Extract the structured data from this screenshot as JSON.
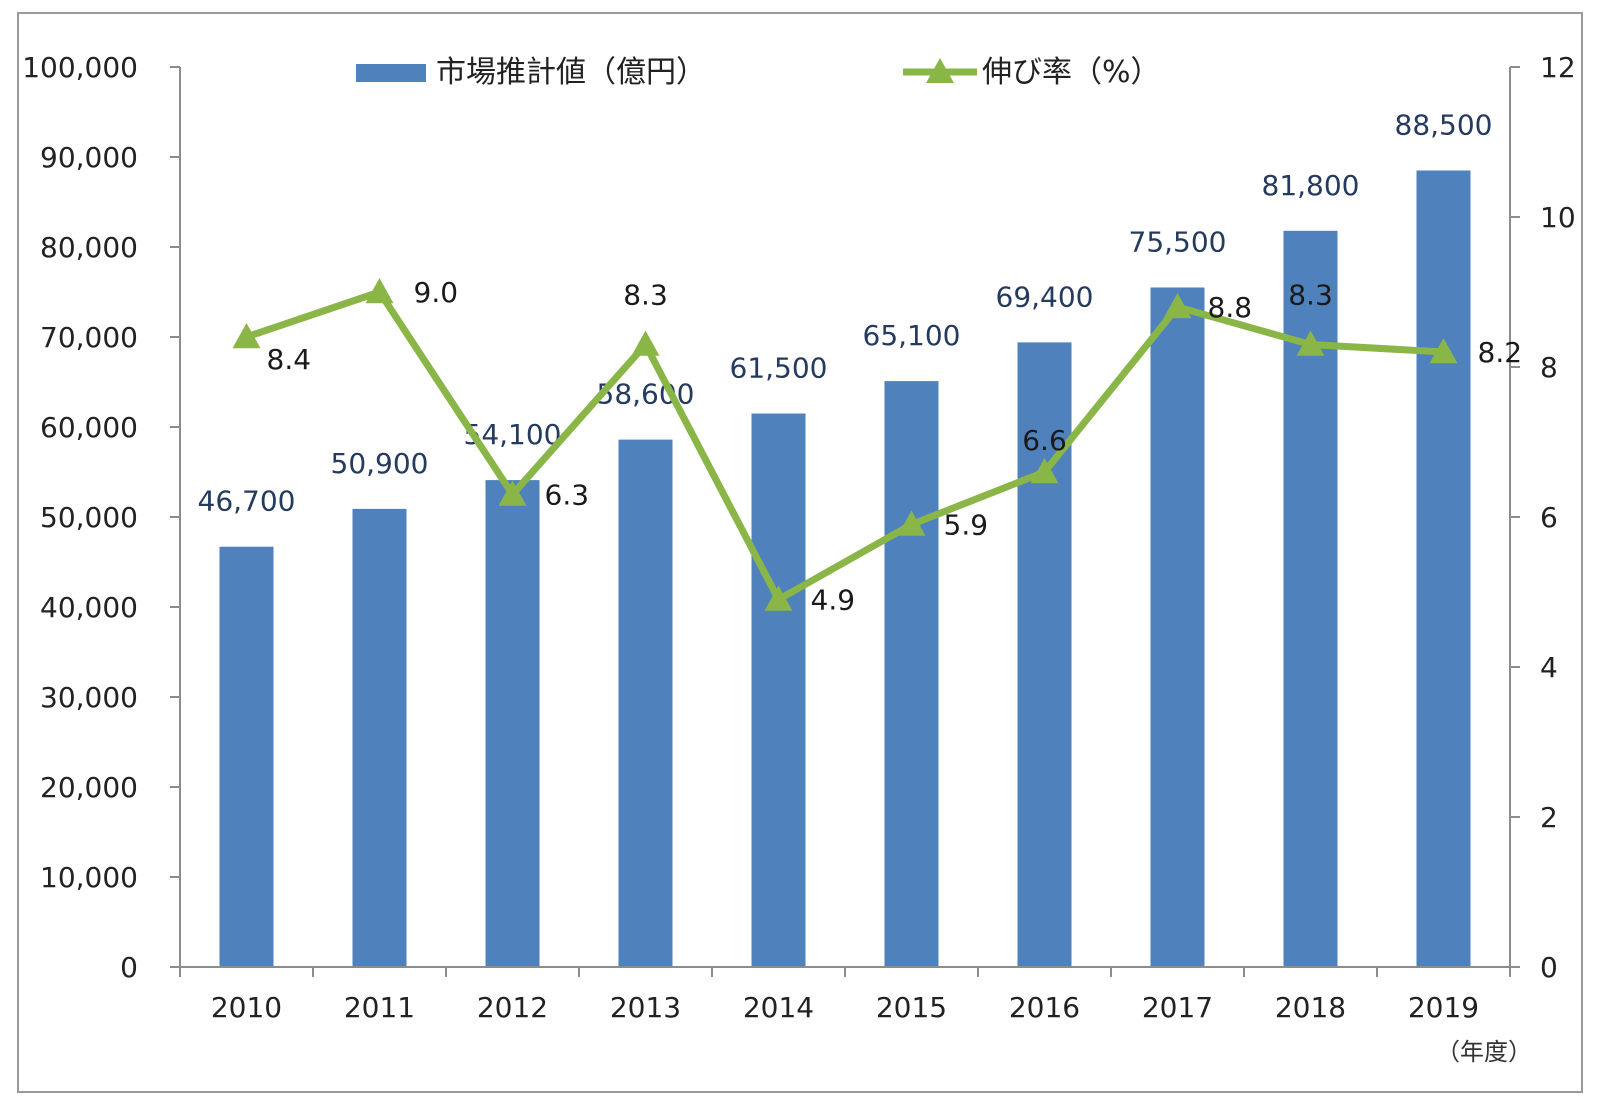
{
  "colors": {
    "bar": "#4f81bd",
    "line": "#8ab547",
    "axis": "#8c8c8c"
  },
  "chart_data": {
    "type": "bar",
    "title": "",
    "xlabel": "（年度）",
    "categories": [
      "2010",
      "2011",
      "2012",
      "2013",
      "2014",
      "2015",
      "2016",
      "2017",
      "2018",
      "2019"
    ],
    "series": [
      {
        "name": "市場推計値（億円）",
        "type": "bar",
        "axis": "left",
        "values": [
          46700,
          50900,
          54100,
          58600,
          61500,
          65100,
          69400,
          75500,
          81800,
          88500
        ],
        "labels": [
          "46,700",
          "50,900",
          "54,100",
          "58,600",
          "61,500",
          "65,100",
          "69,400",
          "75,500",
          "81,800",
          "88,500"
        ]
      },
      {
        "name": "伸び率（%）",
        "type": "line",
        "marker": "triangle",
        "axis": "right",
        "values": [
          8.4,
          9.0,
          6.3,
          8.3,
          4.9,
          5.9,
          6.6,
          8.8,
          8.3,
          8.2
        ],
        "labels": [
          "8.4",
          "9.0",
          "6.3",
          "8.3",
          "4.9",
          "5.9",
          "6.6",
          "8.8",
          "8.3",
          "8.2"
        ]
      }
    ],
    "y_left": {
      "ylim": [
        0,
        100000
      ],
      "ticks": [
        0,
        10000,
        20000,
        30000,
        40000,
        50000,
        60000,
        70000,
        80000,
        90000,
        100000
      ],
      "tick_labels": [
        "0",
        "10,000",
        "20,000",
        "30,000",
        "40,000",
        "50,000",
        "60,000",
        "70,000",
        "80,000",
        "90,000",
        "100,000"
      ]
    },
    "y_right": {
      "ylim": [
        0,
        12
      ],
      "ticks": [
        0,
        2,
        4,
        6,
        8,
        10,
        12
      ],
      "tick_labels": [
        "0",
        "2",
        "4",
        "6",
        "8",
        "10",
        "12"
      ]
    },
    "legend": {
      "placement": "top"
    },
    "grid": false
  }
}
